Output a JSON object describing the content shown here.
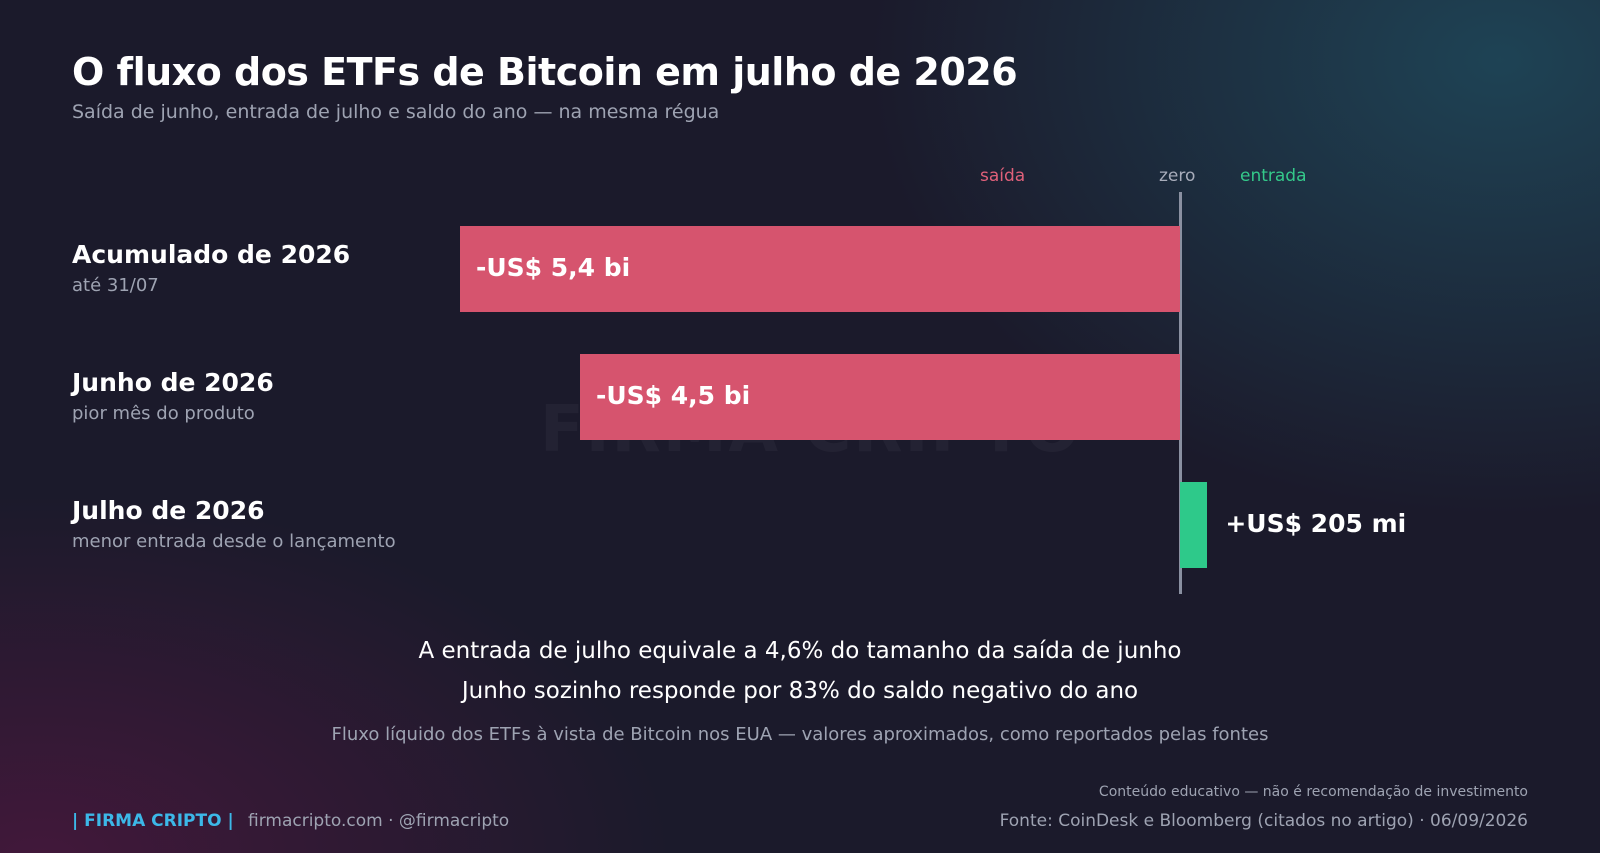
{
  "header": {
    "title": "O fluxo dos ETFs de Bitcoin em julho de 2026",
    "subtitle": "Saída de junho, entrada de julho e saldo do ano — na mesma régua"
  },
  "chart_data": {
    "type": "bar",
    "orientation": "horizontal",
    "unit": "US$ milhões",
    "axis_labels": {
      "negative": "saída",
      "zero": "zero",
      "positive": "entrada"
    },
    "categories": [
      {
        "label": "Acumulado de 2026",
        "sublabel": "até 31/07",
        "value": -5400,
        "value_label": "-US$ 5,4 bi"
      },
      {
        "label": "Junho de 2026",
        "sublabel": "pior mês do produto",
        "value": -4500,
        "value_label": "-US$ 4,5 bi"
      },
      {
        "label": "Julho de 2026",
        "sublabel": "menor entrada desde o lançamento",
        "value": 205,
        "value_label": "+US$ 205 mi"
      }
    ],
    "colors": {
      "negative": "#d6546e",
      "positive": "#2ec98a",
      "axis": "#8a90a1"
    }
  },
  "watermark": "FIRMA CRIPTO",
  "notes": {
    "line1": "A entrada de julho equivale a 4,6% do tamanho da saída de junho",
    "line2": "Junho sozinho responde por 83% do saldo negativo do ano",
    "line3": "Fluxo líquido dos ETFs à vista de Bitcoin nos EUA — valores aproximados, como reportados pelas fontes"
  },
  "footer": {
    "brand": "| FIRMA CRIPTO |",
    "site": "firmacripto.com  ·  @firmacripto",
    "disclaimer": "Conteúdo educativo — não é recomendação de investimento",
    "source": "Fonte: CoinDesk e Bloomberg (citados no artigo)  ·  06/09/2026"
  }
}
